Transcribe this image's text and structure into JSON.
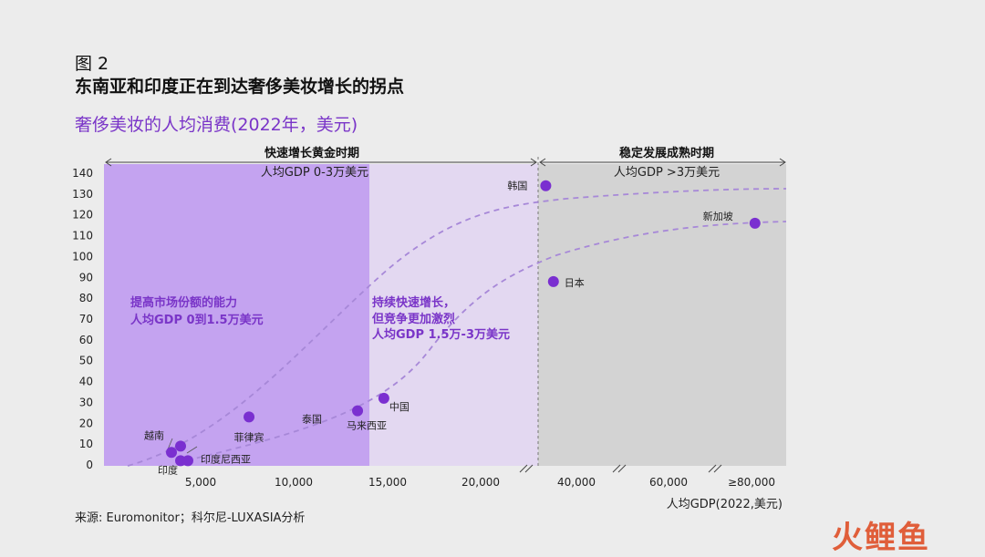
{
  "header": {
    "figure_label": "图 2",
    "title": "东南亚和印度正在到达奢侈美妆增长的拐点",
    "subtitle": "奢侈美妆的人均消费(2022年，美元)"
  },
  "source": "来源: Euromonitor；科尔尼-LUXASIA分析",
  "watermark": "火鲤鱼",
  "colors": {
    "phase_dark": "#c4a3f0",
    "phase_light": "#e3d8f1",
    "phase_grey": "#d3d3d3",
    "point": "#7a2fd0",
    "curve": "#a788d8",
    "annotation_text": "#7a35c8"
  },
  "chart_data": {
    "type": "scatter",
    "title": "奢侈美妆的人均消费(2022年，美元)",
    "xlabel": "人均GDP(2022,美元)",
    "ylabel": "",
    "ylim": [
      0,
      140
    ],
    "yticks": [
      0,
      10,
      20,
      30,
      40,
      50,
      60,
      70,
      80,
      90,
      100,
      110,
      120,
      130,
      140
    ],
    "xticks": [
      "5,000",
      "10,000",
      "15,000",
      "20,000",
      "40,000",
      "60,000",
      "≥80,000"
    ],
    "x_axis_note": "broken axis; tick spacing is not linear beyond 20,000",
    "points": [
      {
        "label": "越南",
        "x": 3400,
        "y": 6
      },
      {
        "label": "",
        "x": 3900,
        "y": 9
      },
      {
        "label": "印度",
        "x": 3900,
        "y": 2
      },
      {
        "label": "印度尼西亚",
        "x": 4300,
        "y": 2
      },
      {
        "label": "菲律宾",
        "x": 7600,
        "y": 23
      },
      {
        "label": "泰国",
        "x": 7600,
        "y": 23
      },
      {
        "label": "马来西亚",
        "x": 13400,
        "y": 26
      },
      {
        "label": "中国",
        "x": 14800,
        "y": 32
      },
      {
        "label": "韩国",
        "x": 32000,
        "y": 134
      },
      {
        "label": "日本",
        "x": 34000,
        "y": 88
      },
      {
        "label": "新加坡",
        "x": 82000,
        "y": 116
      }
    ],
    "phases": [
      {
        "title": "快速增长黄金时期",
        "subtitle": "人均GDP 0-3万美元"
      },
      {
        "title": "稳定发展成熟时期",
        "subtitle": "人均GDP >3万美元"
      }
    ],
    "annotations": [
      {
        "lines": [
          "提高市场份额的能力",
          "人均GDP 0到1.5万美元"
        ]
      },
      {
        "lines": [
          "持续快速增长，",
          "但竞争更加激烈",
          "人均GDP 1.5万-3万美元"
        ]
      }
    ]
  }
}
